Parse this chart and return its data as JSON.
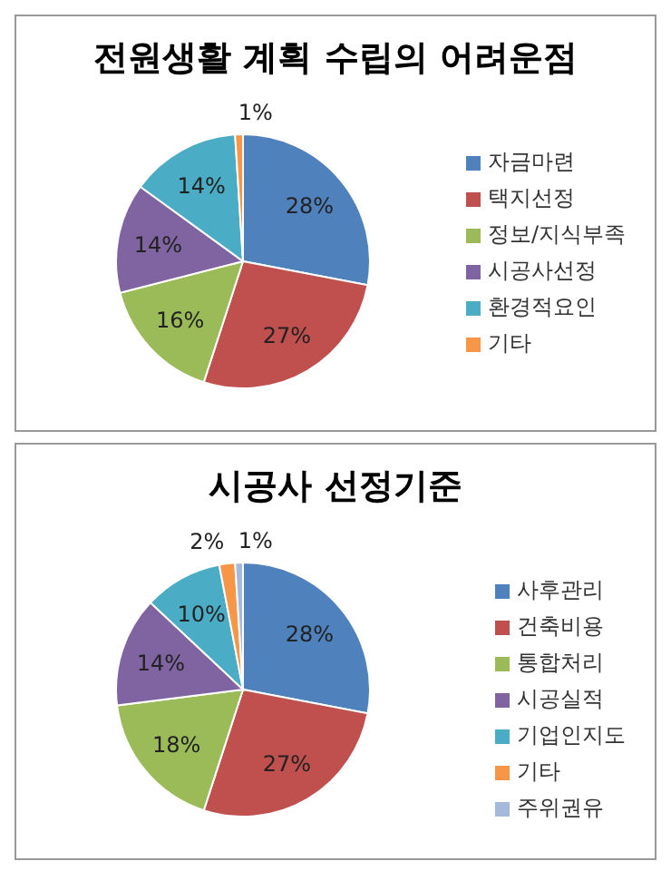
{
  "chart_data": [
    {
      "type": "pie",
      "title": "전원생활 계획 수립의 어려운점",
      "categories": [
        "자금마련",
        "택지선정",
        "정보/지식부족",
        "시공사선정",
        "환경적요인",
        "기타"
      ],
      "values": [
        28,
        27,
        16,
        14,
        14,
        1
      ],
      "colors": [
        "#4f81bd",
        "#c0504d",
        "#9bbb59",
        "#8064a2",
        "#4bacc6",
        "#f79646"
      ],
      "value_labels": [
        "28%",
        "27%",
        "16%",
        "14%",
        "14%",
        "1%"
      ],
      "legend": "right"
    },
    {
      "type": "pie",
      "title": "시공사 선정기준",
      "categories": [
        "사후관리",
        "건축비용",
        "통합처리",
        "시공실적",
        "기업인지도",
        "기타",
        "주위권유"
      ],
      "values": [
        28,
        27,
        18,
        14,
        10,
        2,
        1
      ],
      "colors": [
        "#4f81bd",
        "#c0504d",
        "#9bbb59",
        "#8064a2",
        "#4bacc6",
        "#f79646",
        "#a5b9dd"
      ],
      "value_labels": [
        "28%",
        "27%",
        "18%",
        "14%",
        "10%",
        "2%",
        "1%"
      ],
      "legend": "right"
    }
  ]
}
